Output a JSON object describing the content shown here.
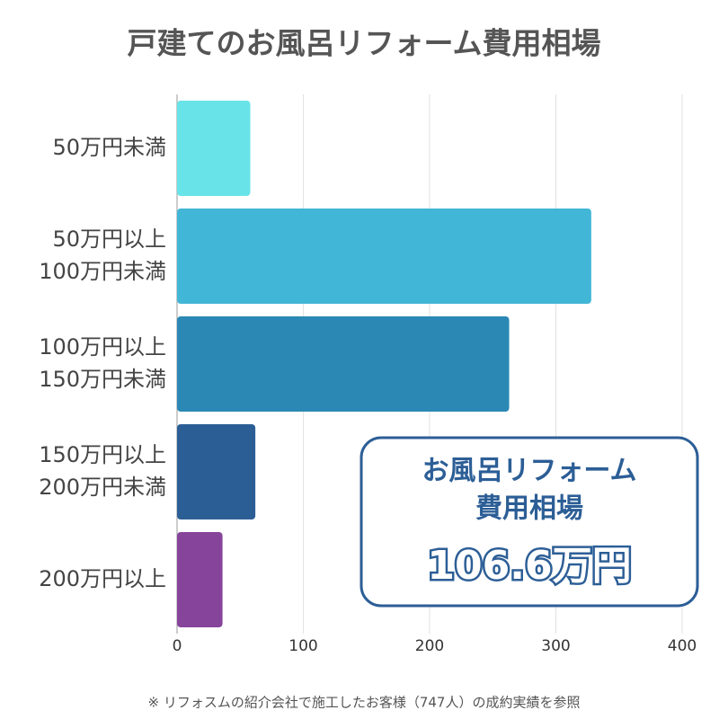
{
  "chart_data": {
    "type": "hbar",
    "title": "戸建てのお風呂リフォーム費用相場",
    "categories": [
      [
        "50万円未満"
      ],
      [
        "50万円以上",
        "100万円未満"
      ],
      [
        "100万円以上",
        "150万円未満"
      ],
      [
        "150万円以上",
        "200万円未満"
      ],
      [
        "200万円以上"
      ]
    ],
    "values": [
      58,
      328,
      263,
      62,
      36
    ],
    "colors": [
      "#68e4e8",
      "#42b6d6",
      "#2b88b5",
      "#2c5e96",
      "#86449b"
    ],
    "xlim": [
      0,
      400
    ],
    "xticks": [
      0,
      100,
      200,
      300,
      400
    ],
    "grid": true,
    "annotation": {
      "heading": [
        "お風呂リフォーム",
        "費用相場"
      ],
      "value": "106.6万円"
    },
    "note": "※ リフォスムの紹介会社で施工したお客様（747人）の成約実績を参照"
  }
}
